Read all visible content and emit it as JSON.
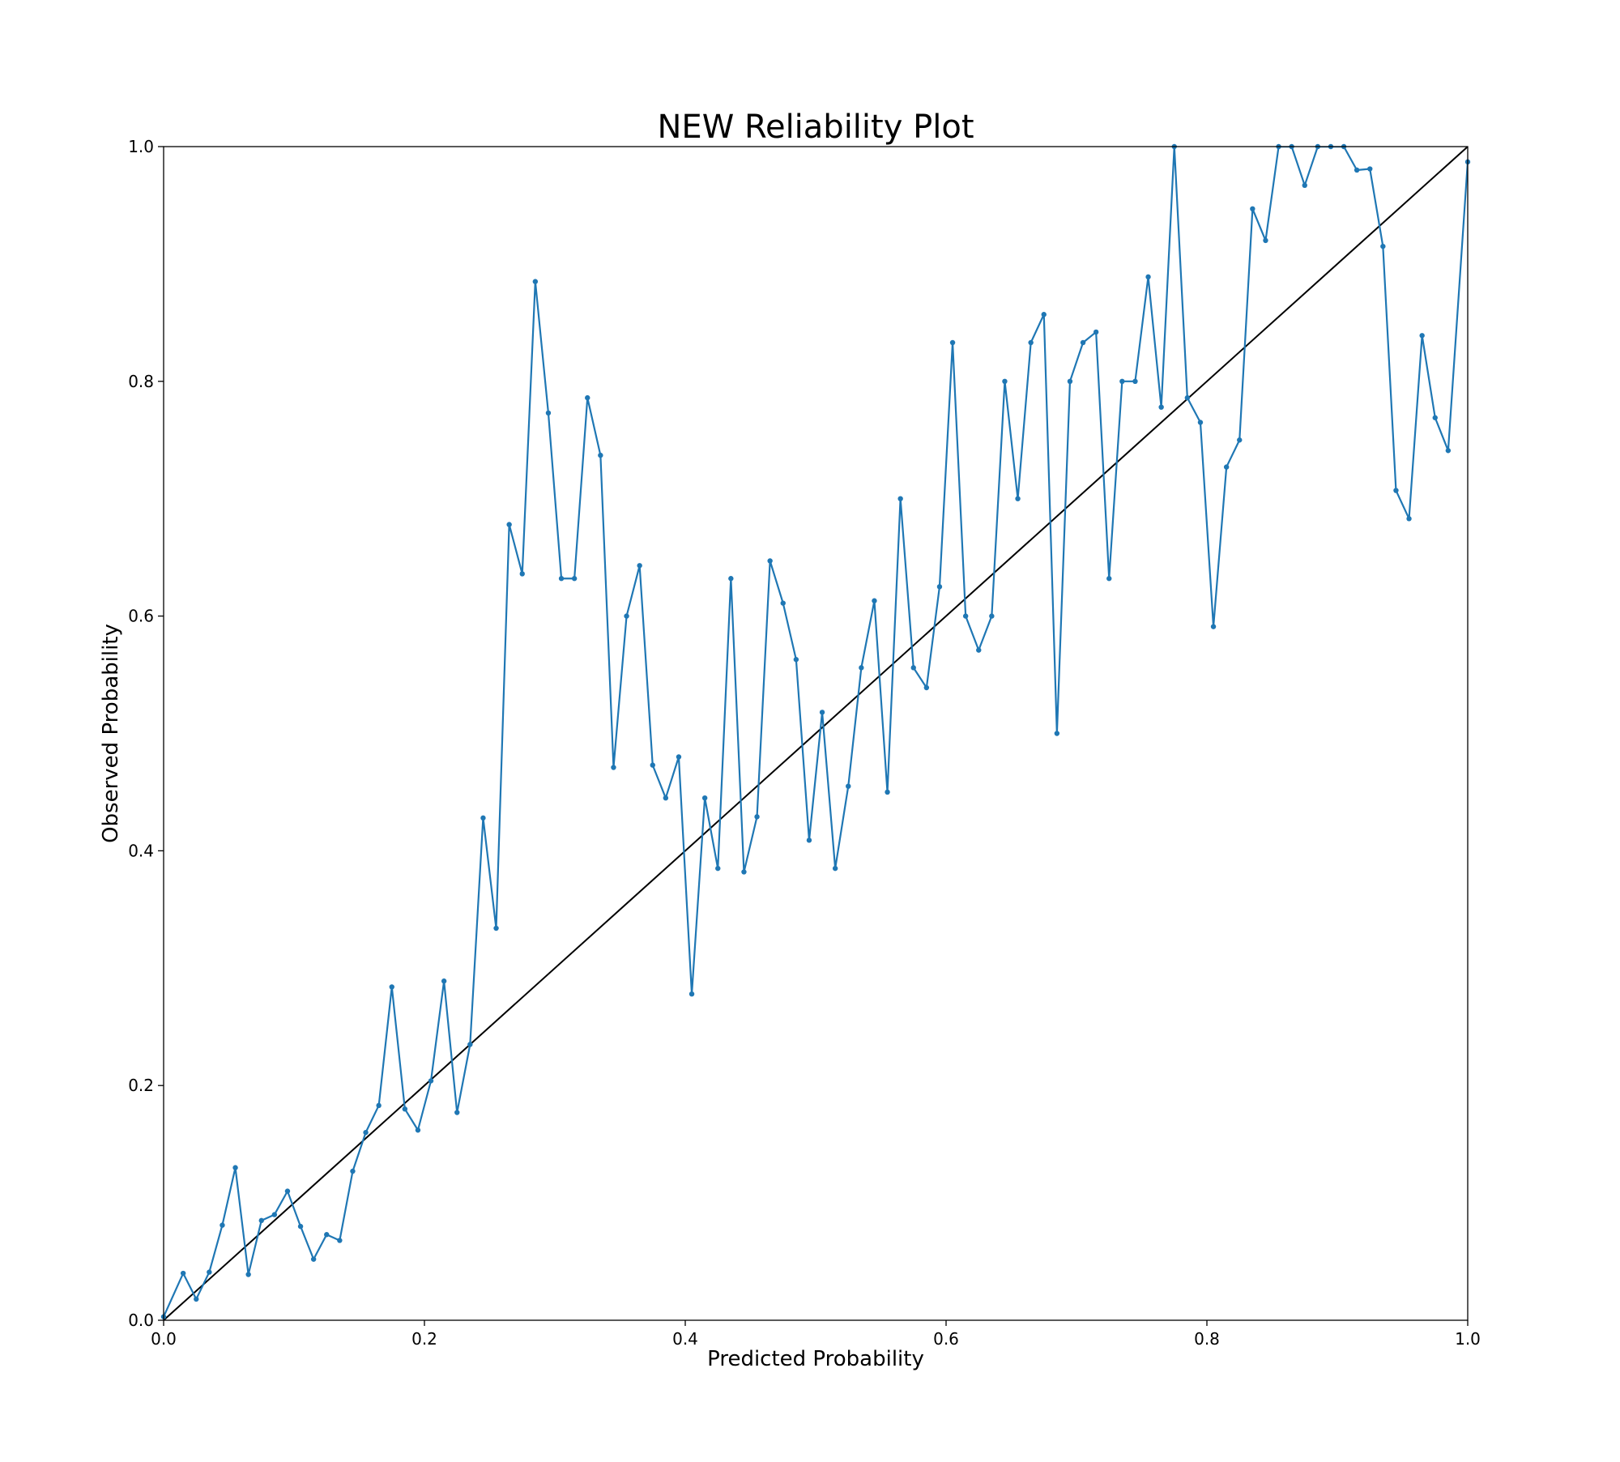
{
  "chart_data": {
    "type": "line",
    "title": "NEW Reliability Plot",
    "xlabel": "Predicted Probability",
    "ylabel": "Observed Probability",
    "xlim": [
      0.0,
      1.0
    ],
    "ylim": [
      0.0,
      1.0
    ],
    "xticks": [
      "0.0",
      "0.2",
      "0.4",
      "0.6",
      "0.8",
      "1.0"
    ],
    "yticks": [
      "0.0",
      "0.2",
      "0.4",
      "0.6",
      "0.8",
      "1.0"
    ],
    "grid": false,
    "legend": "none",
    "series": [
      {
        "color": "#1f77b4",
        "marker": "dot",
        "x": [
          0.0,
          0.015,
          0.025,
          0.035,
          0.045,
          0.055,
          0.065,
          0.075,
          0.085,
          0.095,
          0.105,
          0.115,
          0.125,
          0.135,
          0.145,
          0.155,
          0.165,
          0.175,
          0.185,
          0.195,
          0.205,
          0.215,
          0.225,
          0.235,
          0.245,
          0.255,
          0.265,
          0.275,
          0.285,
          0.295,
          0.305,
          0.315,
          0.325,
          0.335,
          0.345,
          0.355,
          0.365,
          0.375,
          0.385,
          0.395,
          0.405,
          0.415,
          0.425,
          0.435,
          0.445,
          0.455,
          0.465,
          0.475,
          0.485,
          0.495,
          0.505,
          0.515,
          0.525,
          0.535,
          0.545,
          0.555,
          0.565,
          0.575,
          0.585,
          0.595,
          0.605,
          0.615,
          0.625,
          0.635,
          0.645,
          0.655,
          0.665,
          0.675,
          0.685,
          0.695,
          0.705,
          0.715,
          0.725,
          0.735,
          0.745,
          0.755,
          0.765,
          0.775,
          0.785,
          0.795,
          0.805,
          0.815,
          0.825,
          0.835,
          0.845,
          0.855,
          0.865,
          0.875,
          0.885,
          0.895,
          0.905,
          0.915,
          0.925,
          0.935,
          0.945,
          0.955,
          0.965,
          0.975,
          0.985,
          1.0
        ],
        "y": [
          0.003,
          0.04,
          0.018,
          0.041,
          0.081,
          0.13,
          0.039,
          0.085,
          0.09,
          0.11,
          0.08,
          0.052,
          0.073,
          0.068,
          0.127,
          0.16,
          0.183,
          0.284,
          0.18,
          0.162,
          0.204,
          0.289,
          0.177,
          0.235,
          0.428,
          0.334,
          0.678,
          0.636,
          0.885,
          0.773,
          0.632,
          0.632,
          0.786,
          0.737,
          0.471,
          0.6,
          0.643,
          0.473,
          0.445,
          0.48,
          0.278,
          0.445,
          0.385,
          0.632,
          0.382,
          0.429,
          0.647,
          0.611,
          0.563,
          0.409,
          0.518,
          0.385,
          0.455,
          0.556,
          0.613,
          0.45,
          0.7,
          0.556,
          0.539,
          0.625,
          0.833,
          0.6,
          0.571,
          0.6,
          0.8,
          0.7,
          0.833,
          0.857,
          0.5,
          0.8,
          0.833,
          0.842,
          0.632,
          0.8,
          0.8,
          0.889,
          0.778,
          1.0,
          0.786,
          0.765,
          0.591,
          0.727,
          0.75,
          0.947,
          0.92,
          1.0,
          1.0,
          0.967,
          1.0,
          1.0,
          1.0,
          0.98,
          0.981,
          0.915,
          0.707,
          0.683,
          0.839,
          0.769,
          0.741,
          0.987
        ]
      },
      {
        "color": "#000000",
        "marker": "none",
        "x": [
          0.0,
          1.0
        ],
        "y": [
          0.0,
          1.0
        ]
      }
    ]
  }
}
